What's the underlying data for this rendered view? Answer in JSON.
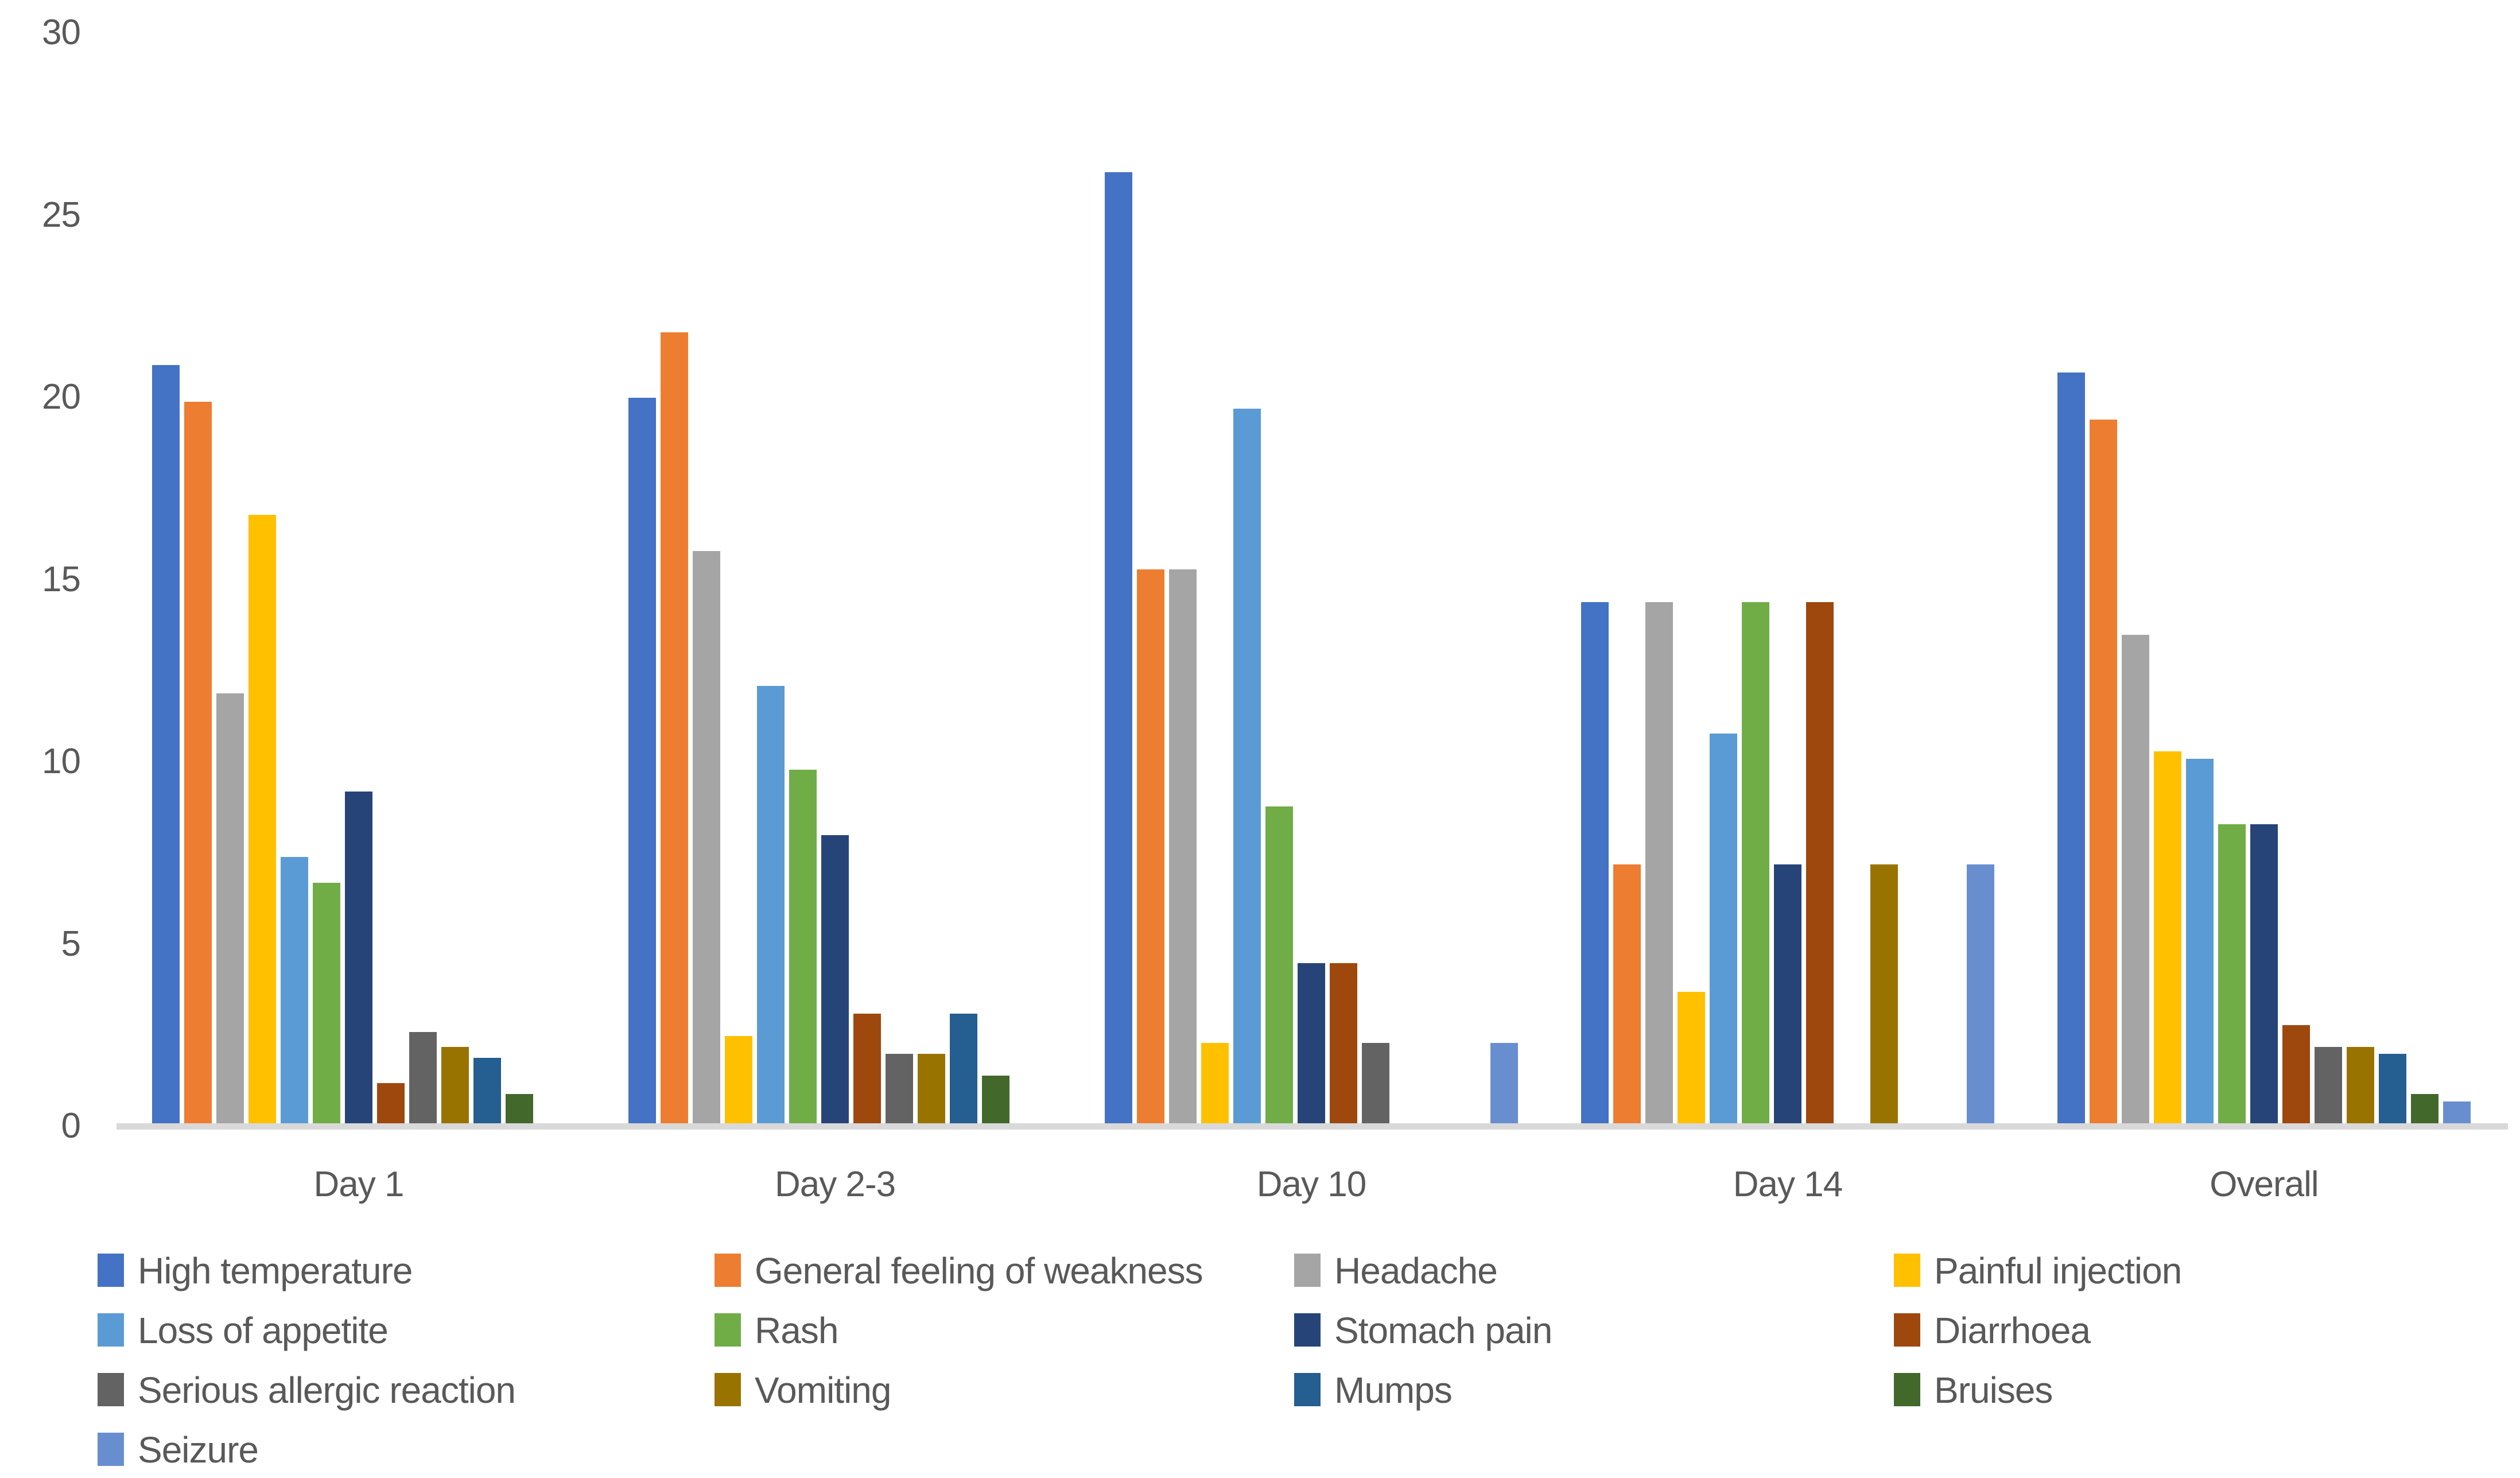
{
  "chart_data": {
    "type": "bar",
    "title": "",
    "xlabel": "",
    "ylabel": "",
    "categories": [
      "Day 1",
      "Day 2-3",
      "Day 10",
      "Day 14",
      "Overall"
    ],
    "series": [
      {
        "name": "High temperature",
        "color": "#4472C4",
        "values": [
          20.8,
          19.9,
          26.1,
          14.3,
          20.6
        ]
      },
      {
        "name": "General feeling of weakness",
        "color": "#ED7D31",
        "values": [
          19.8,
          21.7,
          15.2,
          7.1,
          19.3
        ]
      },
      {
        "name": "Headache",
        "color": "#A5A5A5",
        "values": [
          11.8,
          15.7,
          15.2,
          14.3,
          13.4
        ]
      },
      {
        "name": "Painful injection",
        "color": "#FFC000",
        "values": [
          16.7,
          2.4,
          2.2,
          3.6,
          10.2
        ]
      },
      {
        "name": "Loss of appetite",
        "color": "#5B9BD5",
        "values": [
          7.3,
          12.0,
          19.6,
          10.7,
          10.0
        ]
      },
      {
        "name": "Rash",
        "color": "#70AD47",
        "values": [
          6.6,
          9.7,
          8.7,
          14.3,
          8.2
        ]
      },
      {
        "name": "Stomach pain",
        "color": "#264478",
        "values": [
          9.1,
          7.9,
          4.4,
          7.1,
          8.2
        ]
      },
      {
        "name": "Diarrhoea",
        "color": "#9E480E",
        "values": [
          1.1,
          3.0,
          4.4,
          14.3,
          2.7
        ]
      },
      {
        "name": "Serious allergic reaction",
        "color": "#636363",
        "values": [
          2.5,
          1.9,
          2.2,
          0,
          2.1
        ]
      },
      {
        "name": "Vomiting",
        "color": "#997300",
        "values": [
          2.1,
          1.9,
          0,
          7.1,
          2.1
        ]
      },
      {
        "name": "Mumps",
        "color": "#255E91",
        "values": [
          1.8,
          3.0,
          0,
          0,
          1.9
        ]
      },
      {
        "name": "Bruises",
        "color": "#43682B",
        "values": [
          0.8,
          1.3,
          0,
          0,
          0.8
        ]
      },
      {
        "name": "Seizure",
        "color": "#698ED0",
        "values": [
          0,
          0,
          2.2,
          7.1,
          0.6
        ]
      }
    ],
    "y_axis": {
      "min": 0,
      "max": 30,
      "tick_interval": 5,
      "ticks": [
        0,
        5,
        10,
        15,
        20,
        25,
        30
      ]
    },
    "grid": false,
    "legend_position": "bottom",
    "legend_columns": 4
  },
  "colors": {
    "axis_text": "#595959",
    "axis_line": "#D9D9D9",
    "background": "#FFFFFF"
  }
}
